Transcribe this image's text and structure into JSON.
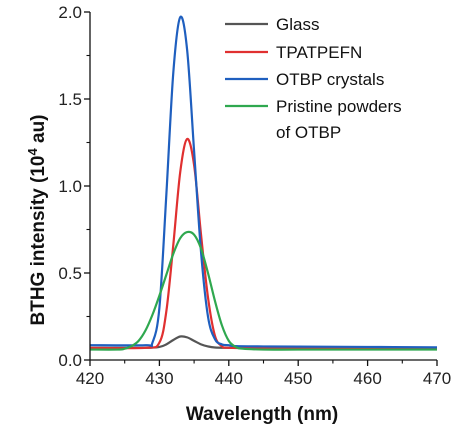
{
  "chart_data": {
    "type": "line",
    "xlabel": "Wavelength (nm)",
    "ylabel": {
      "main": "BTHG intensity (10",
      "sup": "4",
      "unit": " au)"
    },
    "xlim": [
      420,
      470
    ],
    "ylim": [
      0,
      2.0
    ],
    "x_ticks": [
      420,
      430,
      440,
      450,
      460,
      470
    ],
    "x_tick_labels": [
      "420",
      "430",
      "440",
      "450",
      "460",
      "470"
    ],
    "y_ticks": [
      0,
      0.5,
      1.0,
      1.5,
      2.0
    ],
    "y_tick_labels": [
      "0.0",
      "0.5",
      "1.0",
      "1.5",
      "2.0"
    ],
    "grid": false,
    "legend_position": "top-right",
    "series": [
      {
        "name": "Glass",
        "color": "#555555",
        "x": [
          420,
          428,
          430,
          431,
          432,
          433,
          434,
          435,
          436,
          437,
          438,
          440,
          445,
          450,
          460,
          470
        ],
        "y": [
          0.07,
          0.07,
          0.075,
          0.09,
          0.115,
          0.135,
          0.13,
          0.11,
          0.09,
          0.078,
          0.072,
          0.07,
          0.068,
          0.067,
          0.066,
          0.065
        ]
      },
      {
        "name": "TPATPEFN",
        "color": "#e03030",
        "x": [
          420,
          428,
          430,
          431,
          432,
          433,
          434,
          435,
          436,
          437,
          438,
          439,
          440,
          445,
          450,
          460,
          470
        ],
        "y": [
          0.07,
          0.07,
          0.1,
          0.28,
          0.66,
          1.08,
          1.27,
          1.12,
          0.72,
          0.36,
          0.14,
          0.08,
          0.07,
          0.068,
          0.067,
          0.066,
          0.065
        ]
      },
      {
        "name": "OTBP crystals",
        "color": "#1f5fbf",
        "x": [
          420,
          428,
          429,
          430,
          431,
          432,
          433,
          434,
          435,
          436,
          437,
          438,
          439,
          440,
          441,
          445,
          450,
          460,
          470
        ],
        "y": [
          0.085,
          0.085,
          0.1,
          0.3,
          0.95,
          1.65,
          1.97,
          1.78,
          1.2,
          0.62,
          0.25,
          0.12,
          0.09,
          0.085,
          0.08,
          0.078,
          0.077,
          0.075,
          0.073
        ]
      },
      {
        "name": "Pristine powders of OTBP",
        "color": "#2fa84f",
        "x": [
          420,
          424,
          425,
          426,
          427,
          428,
          429,
          430,
          431,
          432,
          433,
          434,
          435,
          436,
          437,
          438,
          439,
          440,
          441,
          442,
          445,
          450,
          460,
          470
        ],
        "y": [
          0.06,
          0.06,
          0.065,
          0.08,
          0.11,
          0.17,
          0.26,
          0.37,
          0.49,
          0.61,
          0.7,
          0.735,
          0.72,
          0.64,
          0.5,
          0.34,
          0.2,
          0.11,
          0.075,
          0.065,
          0.06,
          0.06,
          0.06,
          0.06
        ]
      }
    ],
    "legend": [
      {
        "label": "Glass",
        "color": "#555555"
      },
      {
        "label": "TPATPEFN",
        "color": "#e03030"
      },
      {
        "label": "OTBP crystals",
        "color": "#1f5fbf"
      },
      {
        "label": "Pristine powders",
        "label2": "of OTBP",
        "color": "#2fa84f"
      }
    ]
  }
}
